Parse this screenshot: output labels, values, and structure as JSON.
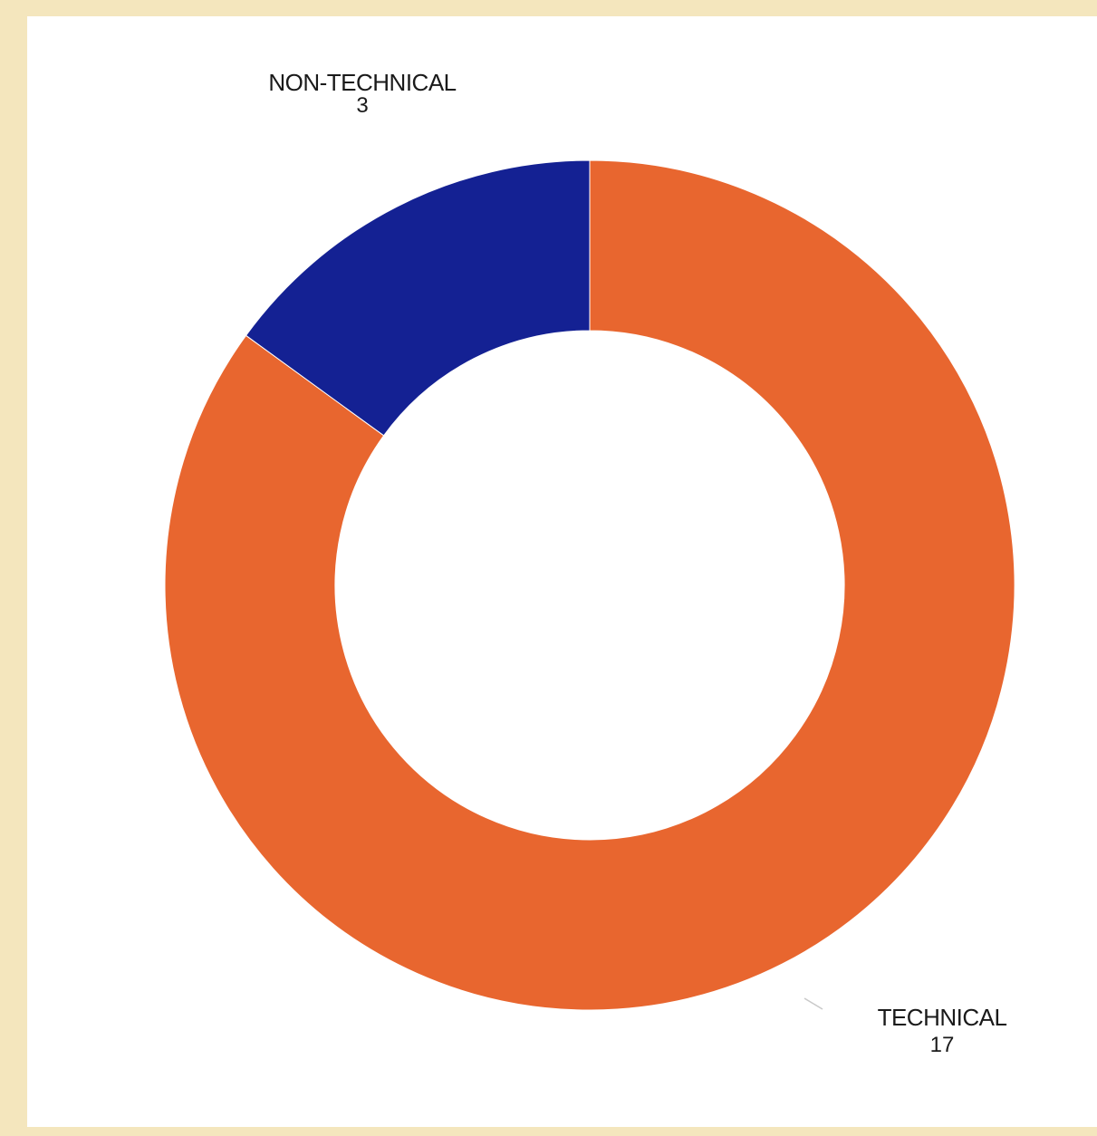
{
  "chart_data": {
    "type": "pie",
    "variant": "donut",
    "categories": [
      "TECHNICAL",
      "NON-TECHNICAL"
    ],
    "values": [
      17,
      3
    ],
    "colors": [
      "#e8662f",
      "#142193"
    ],
    "slices": [
      {
        "label": "TECHNICAL",
        "value": 17,
        "value_text": "17",
        "color": "#e8662f"
      },
      {
        "label": "NON-TECHNICAL",
        "value": 3,
        "value_text": "3",
        "color": "#142193"
      }
    ],
    "title": "",
    "legend": "none"
  },
  "colors": {
    "background": "#f4e6bd",
    "panel": "#ffffff"
  }
}
